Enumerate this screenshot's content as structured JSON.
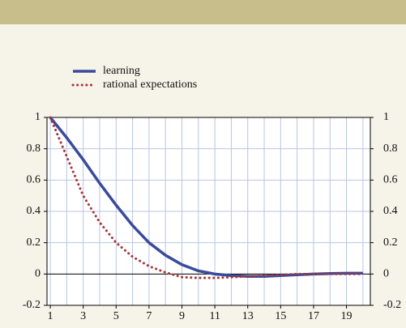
{
  "chart_data": {
    "type": "line",
    "x": [
      1,
      2,
      3,
      4,
      5,
      6,
      7,
      8,
      9,
      10,
      11,
      12,
      13,
      14,
      15,
      16,
      17,
      18,
      19,
      20
    ],
    "series": [
      {
        "name": "learning",
        "color": "#3b4a9b",
        "style": "solid",
        "values": [
          1,
          0.87,
          0.73,
          0.58,
          0.44,
          0.31,
          0.2,
          0.12,
          0.06,
          0.02,
          0,
          -0.01,
          -0.015,
          -0.015,
          -0.01,
          -0.005,
          0,
          0.003,
          0.005,
          0.005
        ]
      },
      {
        "name": "rational expectations",
        "color": "#a83434",
        "style": "dotted",
        "values": [
          1,
          0.75,
          0.5,
          0.33,
          0.2,
          0.11,
          0.05,
          0.01,
          -0.02,
          -0.025,
          -0.025,
          -0.02,
          -0.015,
          -0.01,
          -0.005,
          0,
          0,
          0,
          0,
          0
        ]
      }
    ],
    "xlim": [
      0.8,
      20.45
    ],
    "xticks": [
      1,
      3,
      5,
      7,
      9,
      11,
      13,
      15,
      17,
      19
    ],
    "ylim": [
      -0.2,
      1
    ],
    "yticks": [
      -0.2,
      0,
      0.2,
      0.4,
      0.6,
      0.8,
      1
    ],
    "grid": true
  }
}
